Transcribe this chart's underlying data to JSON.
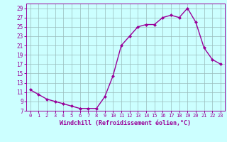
{
  "x": [
    0,
    1,
    2,
    3,
    4,
    5,
    6,
    7,
    8,
    9,
    10,
    11,
    12,
    13,
    14,
    15,
    16,
    17,
    18,
    19,
    20,
    21,
    22,
    23
  ],
  "y": [
    11.5,
    10.5,
    9.5,
    9.0,
    8.5,
    8.0,
    7.5,
    7.5,
    7.5,
    10.0,
    14.5,
    21.0,
    23.0,
    25.0,
    25.5,
    25.5,
    27.0,
    27.5,
    27.0,
    29.0,
    26.0,
    20.5,
    18.0,
    17.0
  ],
  "line_color": "#990099",
  "marker": "D",
  "marker_size": 2.0,
  "bg_color": "#ccffff",
  "grid_color": "#99bbbb",
  "xlabel": "Windchill (Refroidissement éolien,°C)",
  "xlabel_color": "#990099",
  "tick_color": "#990099",
  "ylim": [
    7,
    30
  ],
  "yticks": [
    7,
    9,
    11,
    13,
    15,
    17,
    19,
    21,
    23,
    25,
    27,
    29
  ],
  "xticks": [
    0,
    1,
    2,
    3,
    4,
    5,
    6,
    7,
    8,
    9,
    10,
    11,
    12,
    13,
    14,
    15,
    16,
    17,
    18,
    19,
    20,
    21,
    22,
    23
  ],
  "xlim": [
    -0.5,
    23.5
  ],
  "spine_color": "#990099",
  "line_width": 1.0
}
